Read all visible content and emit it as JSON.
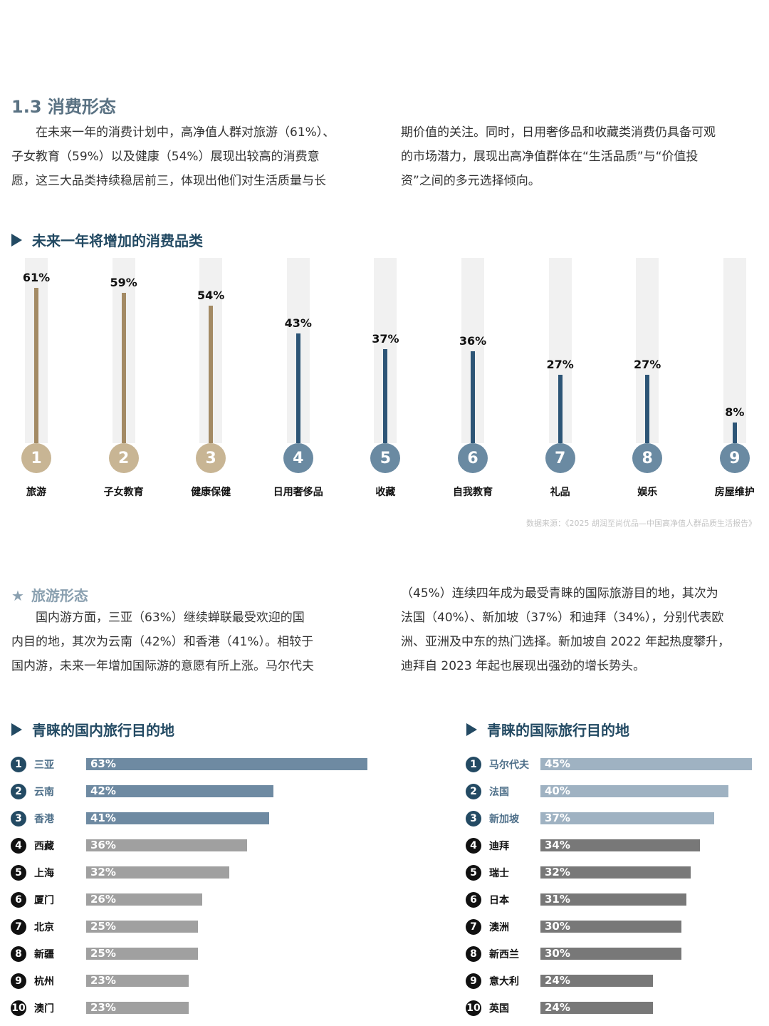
{
  "section": {
    "title": "1.3 消费形态"
  },
  "intro": {
    "left_lines": [
      "　　在未来一年的消费计划中，高净值人群对旅游（61%）、",
      "子女教育（59%）以及健康（54%）展现出较高的消费意",
      "愿，这三大品类持续稳居前三，体现出他们对生活质量与长"
    ],
    "right_lines": [
      "期价值的关注。同时，日用奢侈品和收藏类消费仍具备可观",
      "的市场潜力，展现出高净值群体在“生活品质”与“价值投",
      "资”之间的多元选择倾向。"
    ]
  },
  "consumption_chart_title": "未来一年将增加的消费品类",
  "source_note": "数据来源：《2025 胡润至尚优品—中国高净值人群品质生活报告》",
  "travel": {
    "title": "旅游形态",
    "left_lines": [
      "　　国内游方面，三亚（63%）继续蝉联最受欢迎的国",
      "内目的地，其次为云南（42%）和香港（41%）。相较于",
      "国内游，未来一年增加国际游的意愿有所上涨。马尔代夫"
    ],
    "right_lines": [
      "（45%）连续四年成为最受青睐的国际旅游目的地，其次为",
      "法国（40%）、新加坡（37%）和迪拜（34%），分别代表欧",
      "洲、亚洲及中东的热门选择。新加坡自 2022 年起热度攀升，",
      "迪拜自 2023 年起也展现出强劲的增长势头。"
    ]
  },
  "domestic_title": "青睐的国内旅行目的地",
  "international_title": "青睐的国际旅行目的地",
  "colors": {
    "gold": "#a38a64",
    "gold_circle": "#c8b594",
    "navy": "#2d5576",
    "navy_circle": "#6a8aa2",
    "domestic_top": "#6e8aa2",
    "domestic_rest": "#a0a0a0",
    "intl_top": "#9fb2c2",
    "intl_rest": "#787878",
    "rank_dark": "#234a63",
    "rank_black": "#111111"
  },
  "chart_data": [
    {
      "type": "bar",
      "categories": [
        "旅游",
        "子女教育",
        "健康保健",
        "日用奢侈品",
        "收藏",
        "自我教育",
        "礼品",
        "娱乐",
        "房屋维护"
      ],
      "ranks": [
        "1",
        "2",
        "3",
        "4",
        "5",
        "6",
        "7",
        "8",
        "9"
      ],
      "values": [
        61,
        59,
        54,
        43,
        37,
        36,
        27,
        27,
        8
      ],
      "labels": [
        "61%",
        "59%",
        "54%",
        "43%",
        "37%",
        "36%",
        "27%",
        "27%",
        "8%"
      ],
      "ylim": [
        0,
        70
      ]
    },
    {
      "type": "bar",
      "orientation": "horizontal",
      "categories": [
        "三亚",
        "云南",
        "香港",
        "西藏",
        "上海",
        "厦门",
        "北京",
        "新疆",
        "杭州",
        "澳门"
      ],
      "ranks": [
        "1",
        "2",
        "3",
        "4",
        "5",
        "6",
        "7",
        "8",
        "9",
        "10"
      ],
      "values": [
        63,
        42,
        41,
        36,
        32,
        26,
        25,
        25,
        23,
        23
      ],
      "labels": [
        "63%",
        "42%",
        "41%",
        "36%",
        "32%",
        "26%",
        "25%",
        "25%",
        "23%",
        "23%"
      ]
    },
    {
      "type": "bar",
      "orientation": "horizontal",
      "categories": [
        "马尔代夫",
        "法国",
        "新加坡",
        "迪拜",
        "瑞士",
        "日本",
        "澳洲",
        "新西兰",
        "意大利",
        "英国"
      ],
      "ranks": [
        "1",
        "2",
        "3",
        "4",
        "5",
        "6",
        "7",
        "8",
        "9",
        "10"
      ],
      "values": [
        45,
        40,
        37,
        34,
        32,
        31,
        30,
        30,
        24,
        24
      ],
      "labels": [
        "45%",
        "40%",
        "37%",
        "34%",
        "32%",
        "31%",
        "30%",
        "30%",
        "24%",
        "24%"
      ]
    }
  ]
}
